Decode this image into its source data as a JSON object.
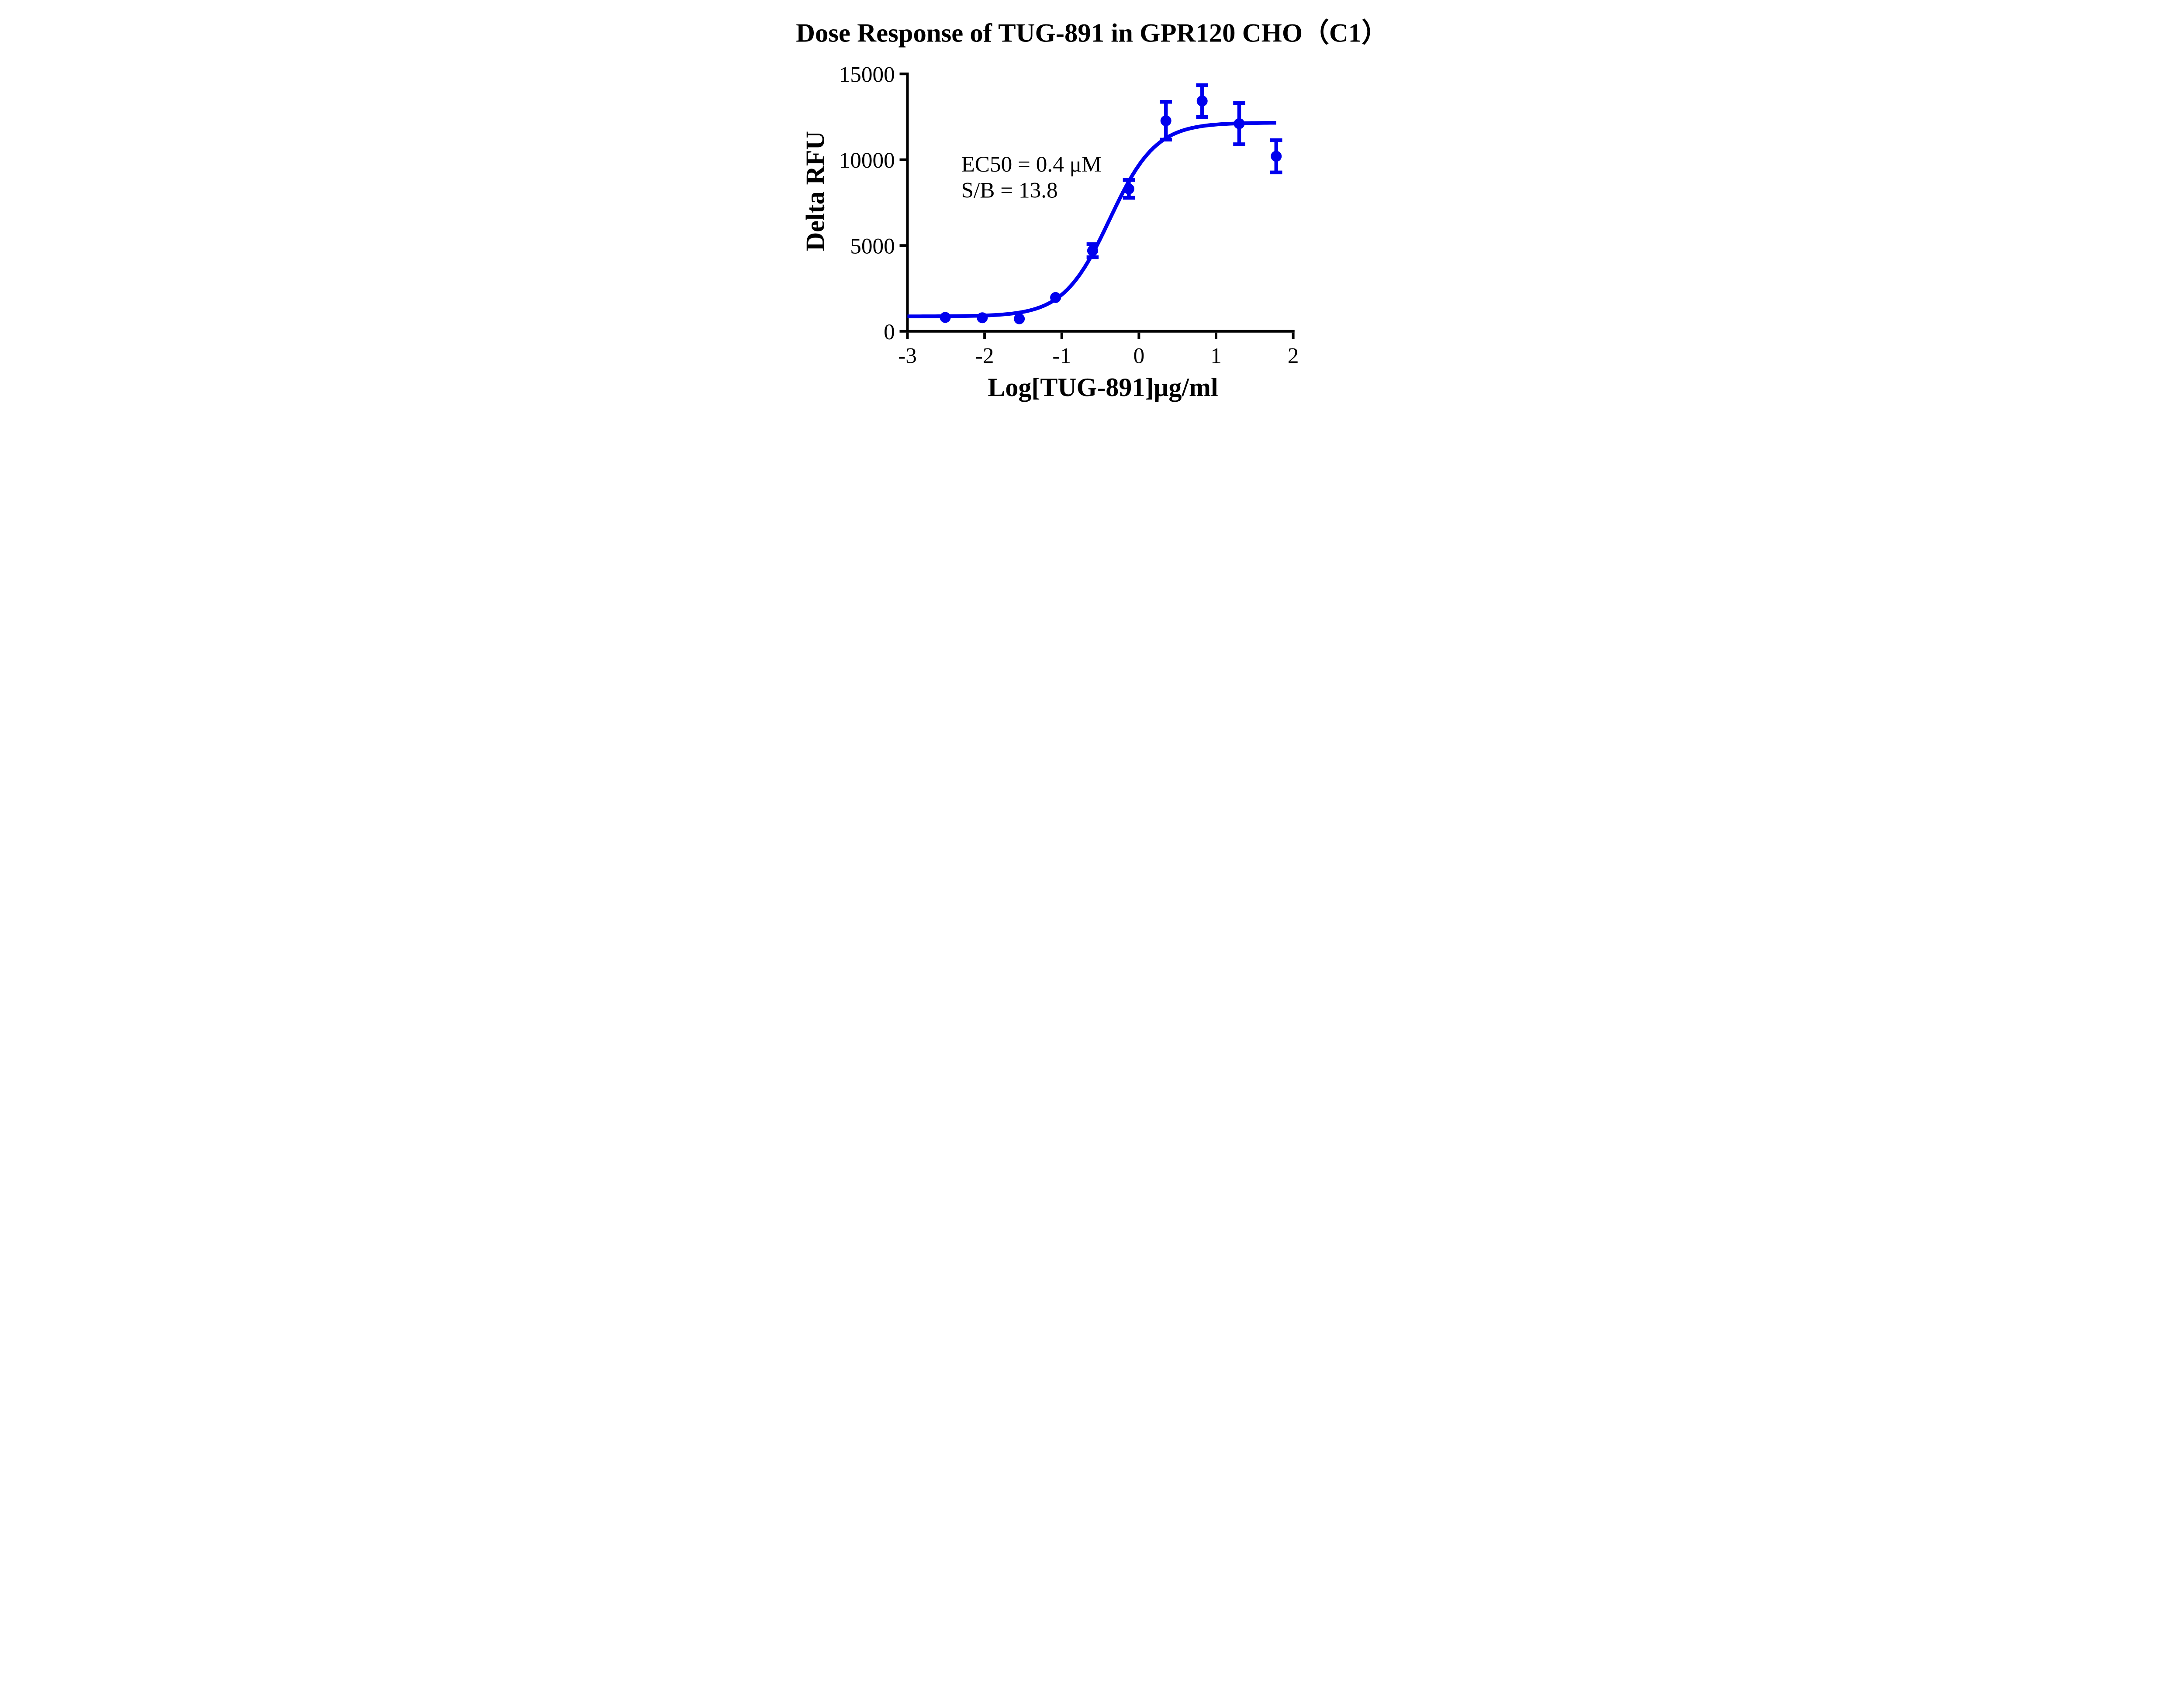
{
  "chart_data": {
    "type": "scatter",
    "title": "Dose Response of TUG-891 in GPR120 CHO（C1）",
    "xlabel": "Log[TUG-891]μg/ml",
    "ylabel": "Delta RFU",
    "annotations": [
      "EC50 = 0.4 μM",
      "S/B = 13.8"
    ],
    "xlim": [
      -3,
      2
    ],
    "ylim": [
      0,
      15000
    ],
    "x_ticks": [
      -3,
      -2,
      -1,
      0,
      1,
      2
    ],
    "y_ticks": [
      0,
      5000,
      10000,
      15000
    ],
    "grid": false,
    "legend_position": "none",
    "accent_color": "#0000EE",
    "axis_color": "#000000",
    "series": [
      {
        "name": "TUG-891",
        "color": "#0000EE",
        "marker": "circle",
        "points": [
          {
            "x": -2.51,
            "y": 810,
            "err": 0
          },
          {
            "x": -2.03,
            "y": 790,
            "err": 0
          },
          {
            "x": -1.55,
            "y": 730,
            "err": 0
          },
          {
            "x": -1.08,
            "y": 1970,
            "err": 0
          },
          {
            "x": -0.6,
            "y": 4700,
            "err": 380
          },
          {
            "x": -0.13,
            "y": 8300,
            "err": 520
          },
          {
            "x": 0.35,
            "y": 12270,
            "err": 1100
          },
          {
            "x": 0.82,
            "y": 13420,
            "err": 925
          },
          {
            "x": 1.3,
            "y": 12100,
            "err": 1200
          },
          {
            "x": 1.78,
            "y": 10200,
            "err": 940
          }
        ]
      }
    ],
    "fit_curve": {
      "model": "4PL",
      "bottom": 870,
      "top": 12160,
      "log_ec50": -0.38,
      "hill": 1.45,
      "x_start": -3,
      "x_end": 1.78
    }
  }
}
